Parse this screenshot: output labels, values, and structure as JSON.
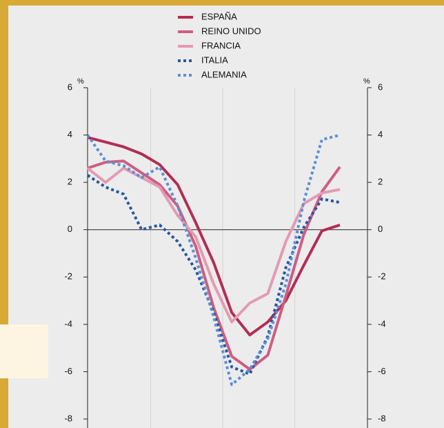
{
  "chart_data": {
    "type": "line",
    "y_unit": "%",
    "x": [
      0,
      1,
      2,
      3,
      4,
      5,
      6,
      7,
      8,
      9,
      10,
      11,
      12,
      13,
      14
    ],
    "xlim": [
      0,
      14
    ],
    "xticks": [
      3.5,
      7.5,
      11.5
    ],
    "ylim": [
      -8,
      6
    ],
    "yticks": [
      -8,
      -6,
      -4,
      -2,
      0,
      2,
      4,
      6
    ],
    "y2lim": [
      -8,
      6
    ],
    "y2ticks": [
      -8,
      -6,
      -4,
      -2,
      0,
      2,
      4,
      6
    ],
    "series": [
      {
        "name": "ESPAÑA",
        "color": "#b22d55",
        "style": "solid",
        "values": [
          3.9,
          3.7,
          3.5,
          3.2,
          2.75,
          1.9,
          0.3,
          -1.4,
          -3.5,
          -4.45,
          -3.9,
          -3.0,
          -1.5,
          -0.05,
          0.2
        ]
      },
      {
        "name": "REINO UNIDO",
        "color": "#cc5e82",
        "style": "solid",
        "values": [
          2.6,
          2.85,
          2.9,
          2.4,
          1.9,
          1.0,
          -0.7,
          -3.3,
          -5.35,
          -5.9,
          -5.3,
          -2.8,
          -0.2,
          1.6,
          2.65
        ]
      },
      {
        "name": "FRANCIA",
        "color": "#e39ab2",
        "style": "solid",
        "values": [
          2.6,
          2.0,
          2.6,
          2.2,
          1.8,
          0.6,
          -0.3,
          -2.3,
          -3.9,
          -3.1,
          -2.7,
          -0.5,
          1.1,
          1.55,
          1.7
        ]
      },
      {
        "name": "ITALIA",
        "color": "#2756a2",
        "style": "dotted",
        "values": [
          2.3,
          1.8,
          1.5,
          0.0,
          0.2,
          -0.5,
          -1.7,
          -3.5,
          -5.8,
          -6.1,
          -4.5,
          -1.6,
          0.1,
          1.3,
          1.15
        ]
      },
      {
        "name": "ALEMANIA",
        "color": "#5b8fd6",
        "style": "dotted",
        "values": [
          4.0,
          2.9,
          2.7,
          2.2,
          2.65,
          1.0,
          -1.2,
          -3.7,
          -6.55,
          -5.9,
          -4.6,
          -2.3,
          1.2,
          3.8,
          4.0
        ]
      }
    ]
  }
}
